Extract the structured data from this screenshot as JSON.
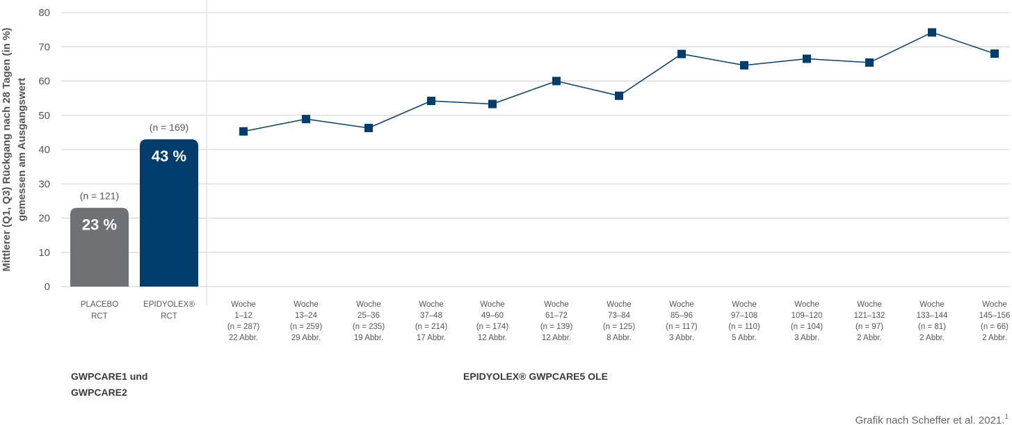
{
  "chart_data": {
    "type": "bar+line",
    "ylabel_line1": "Mittlerer (Q1, Q3) Rückgang nach 28 Tagen (in %)",
    "ylabel_line2": "gemessen am Ausgangswert",
    "ylim": [
      0,
      80
    ],
    "yticks": [
      0,
      10,
      20,
      30,
      40,
      50,
      60,
      70,
      80
    ],
    "grid": true,
    "bars": [
      {
        "label_lines": [
          "PLACEBO",
          "RCT"
        ],
        "value": 23,
        "value_label": "23 %",
        "n_label": "(n = 121)",
        "color": "#6e7275"
      },
      {
        "label_lines": [
          "EPIDYOLEX®",
          "RCT"
        ],
        "value": 43,
        "value_label": "43 %",
        "n_label": "(n = 169)",
        "color": "#003c6c"
      }
    ],
    "series": [
      {
        "color": "#003c6c",
        "points": [
          {
            "label_lines": [
              "Woche",
              "1–12",
              "(n = 287)",
              "22 Abbr."
            ],
            "value": 45.3
          },
          {
            "label_lines": [
              "Woche",
              "13–24",
              "(n = 259)",
              "29 Abbr."
            ],
            "value": 48.9
          },
          {
            "label_lines": [
              "Woche",
              "25–36",
              "(n = 235)",
              "19 Abbr."
            ],
            "value": 46.3
          },
          {
            "label_lines": [
              "Woche",
              "37–48",
              "(n = 214)",
              "17 Abbr."
            ],
            "value": 54.2
          },
          {
            "label_lines": [
              "Woche",
              "49–60",
              "(n = 174)",
              "12 Abbr."
            ],
            "value": 53.3
          },
          {
            "label_lines": [
              "Woche",
              "61–72",
              "(n = 139)",
              "12 Abbr."
            ],
            "value": 60.0
          },
          {
            "label_lines": [
              "Woche",
              "73–84",
              "(n = 125)",
              "8 Abbr."
            ],
            "value": 55.7
          },
          {
            "label_lines": [
              "Woche",
              "85–96",
              "(n = 117)",
              "3 Abbr."
            ],
            "value": 67.9
          },
          {
            "label_lines": [
              "Woche",
              "97–108",
              "(n = 110)",
              "5 Abbr."
            ],
            "value": 64.6
          },
          {
            "label_lines": [
              "Woche",
              "109–120",
              "(n = 104)",
              "3 Abbr."
            ],
            "value": 66.5
          },
          {
            "label_lines": [
              "Woche",
              "121–132",
              "(n = 97)",
              "2 Abbr."
            ],
            "value": 65.4
          },
          {
            "label_lines": [
              "Woche",
              "133–144",
              "(n = 81)",
              "2 Abbr."
            ],
            "value": 74.2
          },
          {
            "label_lines": [
              "Woche",
              "145–156",
              "(n = 66)",
              "2 Abbr."
            ],
            "value": 68.0
          }
        ]
      }
    ],
    "group_left_lines": [
      "GWPCARE1 und",
      "GWPCARE2"
    ],
    "group_right": "EPIDYOLEX® GWPCARE5 OLE",
    "source": "Grafik nach Scheffer et al. 2021.",
    "source_sup": "1"
  }
}
